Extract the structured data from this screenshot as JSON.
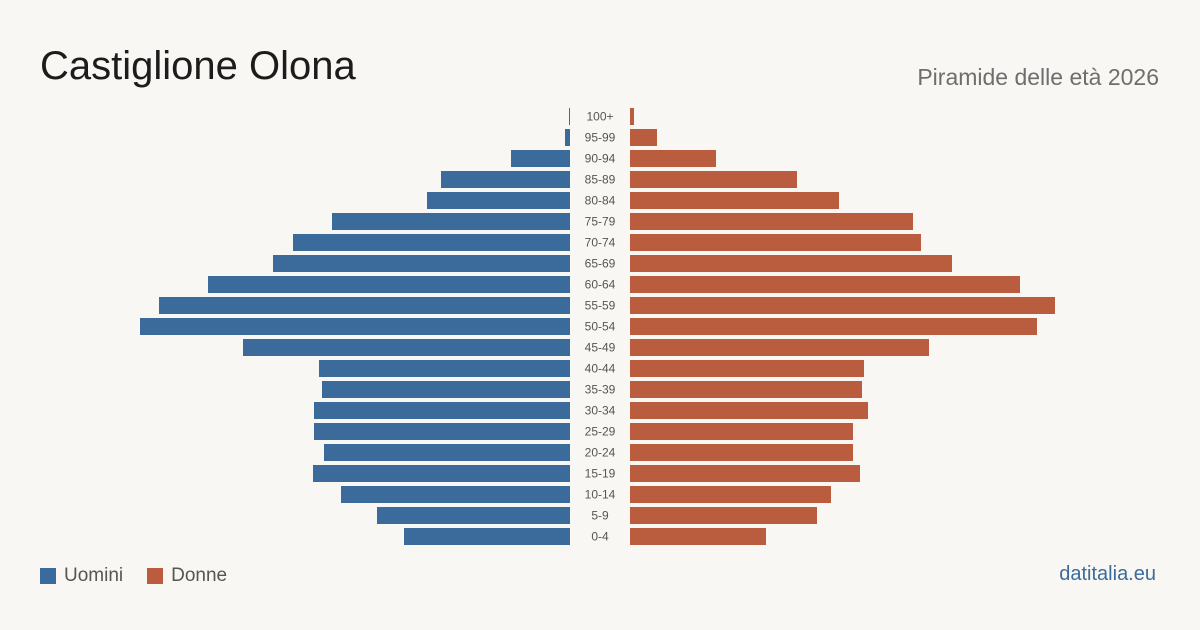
{
  "header": {
    "title": "Castiglione Olona",
    "subtitle": "Piramide delle età 2026"
  },
  "legend": {
    "men_label": "Uomini",
    "women_label": "Donne"
  },
  "footer": {
    "brand": "datitalia.eu"
  },
  "colors": {
    "men": "#3b6b9a",
    "women": "#b95d3e",
    "background": "#f9f7f3",
    "tick_text": "#555555"
  },
  "chart_data": {
    "type": "bar",
    "orientation": "horizontal-pyramid",
    "title": "Castiglione Olona",
    "subtitle": "Piramide delle età 2026",
    "categories": [
      "100+",
      "95-99",
      "90-94",
      "85-89",
      "80-84",
      "75-79",
      "70-74",
      "65-69",
      "60-64",
      "55-59",
      "50-54",
      "45-49",
      "40-44",
      "35-39",
      "30-34",
      "25-29",
      "20-24",
      "15-19",
      "10-14",
      "5-9",
      "0-4"
    ],
    "series": [
      {
        "name": "Uomini",
        "color": "#3b6b9a",
        "values": [
          1,
          5,
          59,
          129,
          143,
          238,
          277,
          297,
          362,
          411,
          430,
          327,
          251,
          248,
          256,
          256,
          246,
          257,
          229,
          193,
          166
        ]
      },
      {
        "name": "Donne",
        "color": "#b95d3e",
        "values": [
          4,
          27,
          86,
          167,
          209,
          283,
          291,
          322,
          390,
          425,
          407,
          299,
          234,
          232,
          238,
          223,
          223,
          230,
          201,
          187,
          136
        ]
      }
    ],
    "xlim": [
      0,
      430
    ],
    "grid": false,
    "legend_position": "bottom-left"
  }
}
